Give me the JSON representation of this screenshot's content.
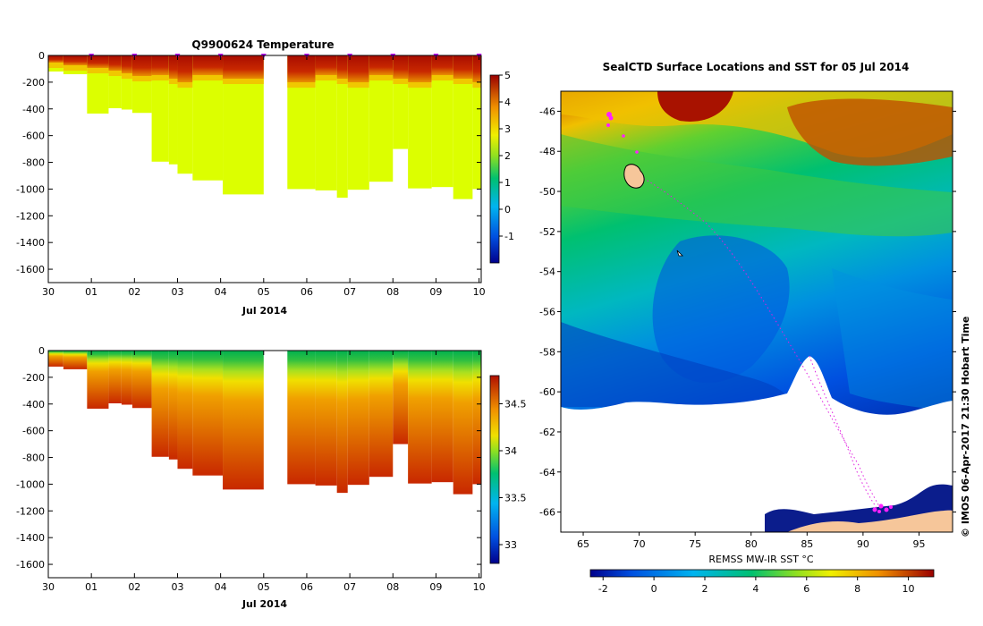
{
  "chart_data": [
    {
      "id": "temp",
      "type": "heatmap",
      "title": "Q9900624  Temperature",
      "xlabel": "Jul 2014",
      "x_tick_labels": [
        "30",
        "01",
        "02",
        "03",
        "04",
        "05",
        "06",
        "07",
        "08",
        "09",
        "10"
      ],
      "xlim": [
        0,
        10.05
      ],
      "ylim": [
        -1700,
        0
      ],
      "y_ticks": [
        0,
        -200,
        -400,
        -600,
        -800,
        -1000,
        -1200,
        -1400,
        -1600
      ],
      "colorbar": {
        "range": [
          -2,
          5
        ],
        "ticks": [
          -1,
          0,
          1,
          2,
          3,
          4,
          5
        ]
      },
      "surface_markers": [
        1,
        2,
        3,
        4,
        5,
        6,
        7,
        8,
        9,
        10
      ],
      "profiles": [
        {
          "start": 0.0,
          "end": 0.35,
          "depth": 120
        },
        {
          "start": 0.35,
          "end": 0.9,
          "depth": 140
        },
        {
          "start": 0.9,
          "end": 1.4,
          "depth": 435
        },
        {
          "start": 1.4,
          "end": 1.7,
          "depth": 395
        },
        {
          "start": 1.7,
          "end": 1.95,
          "depth": 405
        },
        {
          "start": 1.95,
          "end": 2.4,
          "depth": 430
        },
        {
          "start": 2.4,
          "end": 2.8,
          "depth": 795
        },
        {
          "start": 2.8,
          "end": 3.0,
          "depth": 815
        },
        {
          "start": 3.0,
          "end": 3.35,
          "depth": 885
        },
        {
          "start": 3.35,
          "end": 4.05,
          "depth": 935
        },
        {
          "start": 4.05,
          "end": 5.0,
          "depth": 1040
        },
        {
          "start": 5.55,
          "end": 6.2,
          "depth": 1000
        },
        {
          "start": 6.2,
          "end": 6.7,
          "depth": 1010
        },
        {
          "start": 6.7,
          "end": 6.95,
          "depth": 1065
        },
        {
          "start": 6.95,
          "end": 7.45,
          "depth": 1005
        },
        {
          "start": 7.45,
          "end": 8.0,
          "depth": 945
        },
        {
          "start": 8.0,
          "end": 8.35,
          "depth": 700
        },
        {
          "start": 8.35,
          "end": 8.9,
          "depth": 995
        },
        {
          "start": 8.9,
          "end": 9.4,
          "depth": 985
        },
        {
          "start": 9.4,
          "end": 9.85,
          "depth": 1075
        },
        {
          "start": 9.85,
          "end": 10.05,
          "depth": 1000
        }
      ]
    },
    {
      "id": "sal",
      "type": "heatmap",
      "title": "",
      "xlabel": "Jul 2014",
      "x_tick_labels": [
        "30",
        "01",
        "02",
        "03",
        "04",
        "05",
        "06",
        "07",
        "08",
        "09",
        "10"
      ],
      "xlim": [
        0,
        10.05
      ],
      "ylim": [
        -1700,
        0
      ],
      "y_ticks": [
        0,
        -200,
        -400,
        -600,
        -800,
        -1000,
        -1200,
        -1400,
        -1600
      ],
      "colorbar": {
        "range": [
          32.8,
          34.8
        ],
        "ticks": [
          33,
          33.5,
          34,
          34.5
        ]
      }
    },
    {
      "id": "map",
      "type": "heatmap",
      "title": "SealCTD Surface Locations and SST for 05 Jul 2014",
      "colorbar_label": "REMSS MW-IR SST °C",
      "xlim": [
        63,
        98
      ],
      "ylim": [
        -67,
        -45
      ],
      "x_ticks": [
        65,
        70,
        75,
        80,
        85,
        90,
        95
      ],
      "y_ticks": [
        -46,
        -48,
        -50,
        -52,
        -54,
        -56,
        -58,
        -60,
        -62,
        -64,
        -66
      ],
      "colorbar": {
        "range": [
          -2.5,
          11
        ],
        "ticks": [
          -2,
          0,
          2,
          4,
          6,
          8,
          10
        ]
      },
      "side_text": "© IMOS 06-Apr-2017 21:30 Hobart Time"
    }
  ]
}
